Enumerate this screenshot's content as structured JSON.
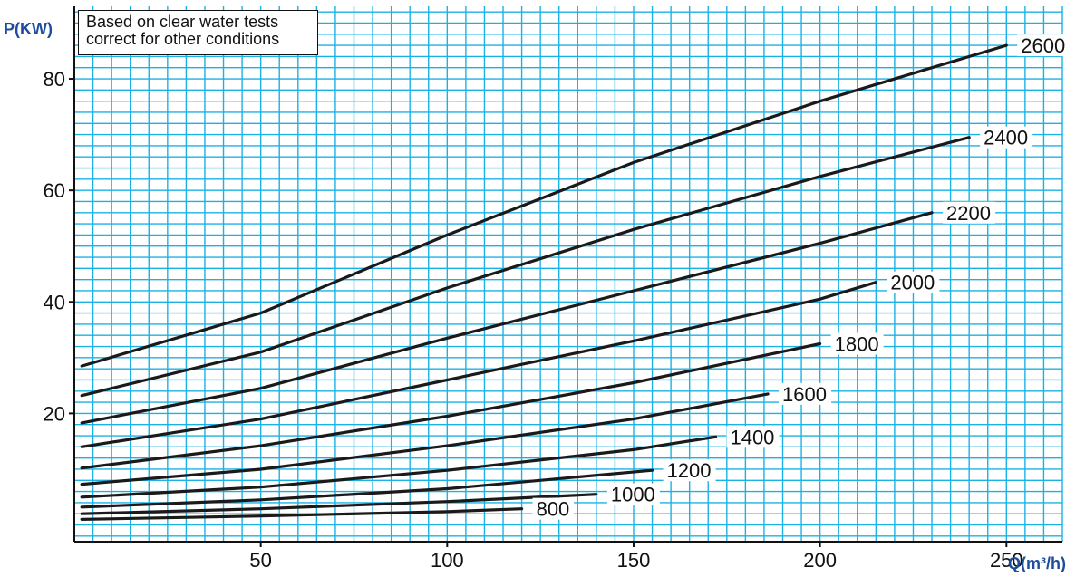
{
  "chart_data": {
    "type": "line",
    "title": "",
    "ylabel": "P(KW)",
    "xlabel": "Q(m³/h)",
    "note": [
      "Based on clear water tests",
      "correct for other conditions"
    ],
    "xlim": [
      0,
      265
    ],
    "ylim": [
      -3,
      93
    ],
    "x_ticks": [
      50,
      100,
      150,
      200,
      250
    ],
    "y_ticks": [
      20,
      40,
      60,
      80
    ],
    "grid": true,
    "colors": {
      "grid": "#1ab2e6",
      "line": "#1a1a1a",
      "axis_label": "#1e4d9c",
      "text": "#111111"
    },
    "series": [
      {
        "name": "2600",
        "x": [
          2,
          50,
          100,
          150,
          200,
          250
        ],
        "y": [
          28.5,
          38,
          52,
          65,
          76,
          86
        ]
      },
      {
        "name": "2400",
        "x": [
          2,
          50,
          100,
          150,
          200,
          240
        ],
        "y": [
          23.2,
          31,
          42.5,
          53,
          62.5,
          69.5
        ]
      },
      {
        "name": "2200",
        "x": [
          2,
          50,
          100,
          150,
          200,
          230
        ],
        "y": [
          18.3,
          24.5,
          33.5,
          42,
          50.5,
          56
        ]
      },
      {
        "name": "2000",
        "x": [
          2,
          50,
          100,
          150,
          200,
          215
        ],
        "y": [
          14,
          19,
          26,
          33,
          40.5,
          43.5
        ]
      },
      {
        "name": "1800",
        "x": [
          2,
          50,
          100,
          150,
          200
        ],
        "y": [
          10.2,
          14.2,
          19.5,
          25.5,
          32.5
        ]
      },
      {
        "name": "1600",
        "x": [
          2,
          50,
          100,
          150,
          186
        ],
        "y": [
          7.3,
          10,
          14.2,
          19,
          23.5
        ]
      },
      {
        "name": "1400",
        "x": [
          2,
          50,
          100,
          150,
          172
        ],
        "y": [
          5,
          6.8,
          9.8,
          13.5,
          15.8
        ]
      },
      {
        "name": "1200",
        "x": [
          2,
          50,
          100,
          155
        ],
        "y": [
          3.2,
          4.5,
          6.5,
          9.8
        ]
      },
      {
        "name": "1000",
        "x": [
          2,
          50,
          100,
          140
        ],
        "y": [
          2,
          2.9,
          4.2,
          5.5
        ]
      },
      {
        "name": "800",
        "x": [
          2,
          50,
          100,
          120
        ],
        "y": [
          1,
          1.6,
          2.4,
          2.9
        ]
      }
    ]
  }
}
